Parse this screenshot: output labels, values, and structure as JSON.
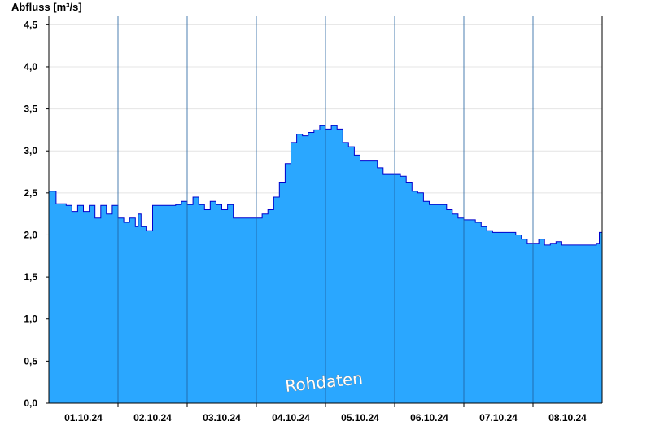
{
  "chart_data": {
    "type": "area",
    "title": "",
    "ylabel": "Abfluss [m³/s]",
    "xlabel": "",
    "watermark": "Rohdaten",
    "ylim": [
      0,
      4.6
    ],
    "yticks": [
      {
        "value": 0.0,
        "label": "0,0"
      },
      {
        "value": 0.5,
        "label": "0,5"
      },
      {
        "value": 1.0,
        "label": "1,0"
      },
      {
        "value": 1.5,
        "label": "1,5"
      },
      {
        "value": 2.0,
        "label": "2,0"
      },
      {
        "value": 2.5,
        "label": "2,5"
      },
      {
        "value": 3.0,
        "label": "3,0"
      },
      {
        "value": 3.5,
        "label": "3,5"
      },
      {
        "value": 4.0,
        "label": "4,0"
      },
      {
        "value": 4.5,
        "label": "4,5"
      }
    ],
    "xlim": [
      "2024-09-30T23:00",
      "2024-10-08T23:00"
    ],
    "xticks": [
      {
        "value": "2024-10-01T11:00",
        "label": "01.10.24"
      },
      {
        "value": "2024-10-02T11:00",
        "label": "02.10.24"
      },
      {
        "value": "2024-10-03T11:00",
        "label": "03.10.24"
      },
      {
        "value": "2024-10-04T11:00",
        "label": "04.10.24"
      },
      {
        "value": "2024-10-05T11:00",
        "label": "05.10.24"
      },
      {
        "value": "2024-10-06T11:00",
        "label": "06.10.24"
      },
      {
        "value": "2024-10-07T11:00",
        "label": "07.10.24"
      },
      {
        "value": "2024-10-08T11:00",
        "label": "08.10.24"
      }
    ],
    "day_separators": [
      "2024-10-01T23:00",
      "2024-10-02T23:00",
      "2024-10-03T23:00",
      "2024-10-04T23:00",
      "2024-10-05T23:00",
      "2024-10-06T23:00",
      "2024-10-07T23:00"
    ],
    "grid": true,
    "colors": {
      "fill": "#2aa7ff",
      "line": "#0000cc",
      "separator": "#1f5f9f",
      "grid": "#e4e4e4"
    },
    "series": [
      {
        "x": [
          "2024-09-30T23:00",
          "2024-10-01T00:30",
          "2024-10-01T01:30",
          "2024-10-01T02:30",
          "2024-10-01T03:30",
          "2024-10-01T05:00",
          "2024-10-01T07:00",
          "2024-10-01T09:00",
          "2024-10-01T11:00",
          "2024-10-01T13:00",
          "2024-10-01T15:00",
          "2024-10-01T17:00",
          "2024-10-01T19:00",
          "2024-10-01T21:00",
          "2024-10-01T23:00",
          "2024-10-02T01:00",
          "2024-10-02T03:00",
          "2024-10-02T05:00",
          "2024-10-02T06:00",
          "2024-10-02T07:00",
          "2024-10-02T09:00",
          "2024-10-02T11:00",
          "2024-10-02T13:00",
          "2024-10-02T15:00",
          "2024-10-02T17:00",
          "2024-10-02T19:00",
          "2024-10-02T21:00",
          "2024-10-02T23:00",
          "2024-10-03T01:00",
          "2024-10-03T03:00",
          "2024-10-03T05:00",
          "2024-10-03T07:00",
          "2024-10-03T09:00",
          "2024-10-03T11:00",
          "2024-10-03T13:00",
          "2024-10-03T15:00",
          "2024-10-03T17:00",
          "2024-10-03T19:00",
          "2024-10-03T21:00",
          "2024-10-03T23:00",
          "2024-10-04T01:00",
          "2024-10-04T03:00",
          "2024-10-04T05:00",
          "2024-10-04T07:00",
          "2024-10-04T09:00",
          "2024-10-04T11:00",
          "2024-10-04T13:00",
          "2024-10-04T15:00",
          "2024-10-04T17:00",
          "2024-10-04T19:00",
          "2024-10-04T21:00",
          "2024-10-04T23:00",
          "2024-10-05T01:00",
          "2024-10-05T03:00",
          "2024-10-05T05:00",
          "2024-10-05T07:00",
          "2024-10-05T09:00",
          "2024-10-05T11:00",
          "2024-10-05T13:00",
          "2024-10-05T15:00",
          "2024-10-05T17:00",
          "2024-10-05T19:00",
          "2024-10-05T21:00",
          "2024-10-05T23:00",
          "2024-10-06T01:00",
          "2024-10-06T03:00",
          "2024-10-06T05:00",
          "2024-10-06T07:00",
          "2024-10-06T09:00",
          "2024-10-06T11:00",
          "2024-10-06T13:00",
          "2024-10-06T15:00",
          "2024-10-06T17:00",
          "2024-10-06T19:00",
          "2024-10-06T21:00",
          "2024-10-06T23:00",
          "2024-10-07T01:00",
          "2024-10-07T03:00",
          "2024-10-07T05:00",
          "2024-10-07T07:00",
          "2024-10-07T09:00",
          "2024-10-07T11:00",
          "2024-10-07T13:00",
          "2024-10-07T15:00",
          "2024-10-07T17:00",
          "2024-10-07T19:00",
          "2024-10-07T21:00",
          "2024-10-07T23:00",
          "2024-10-08T01:00",
          "2024-10-08T03:00",
          "2024-10-08T05:00",
          "2024-10-08T07:00",
          "2024-10-08T09:00",
          "2024-10-08T11:00",
          "2024-10-08T13:00",
          "2024-10-08T15:00",
          "2024-10-08T17:00",
          "2024-10-08T19:00",
          "2024-10-08T21:00",
          "2024-10-08T22:00",
          "2024-10-08T23:00"
        ],
        "y": [
          2.52,
          2.52,
          2.37,
          2.37,
          2.37,
          2.35,
          2.28,
          2.35,
          2.28,
          2.35,
          2.2,
          2.35,
          2.25,
          2.35,
          2.2,
          2.15,
          2.2,
          2.1,
          2.25,
          2.1,
          2.05,
          2.35,
          2.35,
          2.35,
          2.35,
          2.36,
          2.4,
          2.36,
          2.45,
          2.36,
          2.3,
          2.4,
          2.36,
          2.3,
          2.36,
          2.2,
          2.2,
          2.2,
          2.2,
          2.2,
          2.25,
          2.3,
          2.45,
          2.62,
          2.85,
          3.1,
          3.2,
          3.18,
          3.22,
          3.25,
          3.3,
          3.26,
          3.3,
          3.26,
          3.1,
          3.05,
          2.95,
          2.88,
          2.88,
          2.88,
          2.8,
          2.72,
          2.72,
          2.72,
          2.7,
          2.62,
          2.52,
          2.5,
          2.4,
          2.36,
          2.36,
          2.36,
          2.3,
          2.25,
          2.2,
          2.18,
          2.18,
          2.15,
          2.1,
          2.05,
          2.03,
          2.03,
          2.03,
          2.03,
          2.0,
          1.95,
          1.9,
          1.9,
          1.95,
          1.88,
          1.9,
          1.92,
          1.88,
          1.88,
          1.88,
          1.88,
          1.88,
          1.88,
          1.9,
          2.03,
          2.2
        ]
      }
    ]
  }
}
